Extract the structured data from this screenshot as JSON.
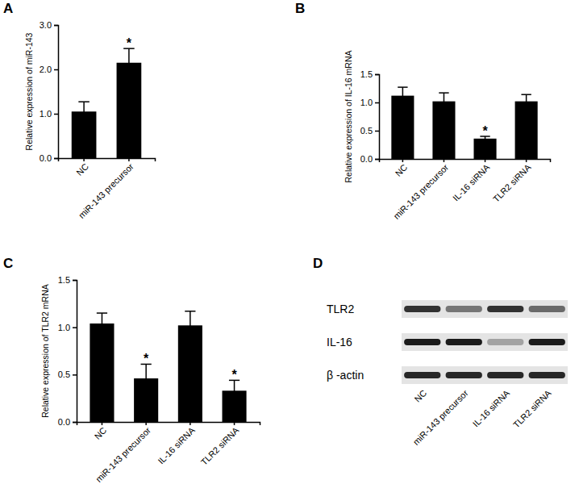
{
  "chart_data": [
    {
      "type": "bar",
      "title": "A",
      "y_label": "Relative expression of miR-143",
      "categories": [
        "NC",
        "miR-143 precursor"
      ],
      "values": [
        1.05,
        2.15
      ],
      "errors": [
        0.22,
        0.32
      ],
      "color": "#000000",
      "ylim": [
        0,
        3
      ],
      "yticks": [
        {
          "value": 0,
          "label": "0.0"
        },
        {
          "value": 1,
          "label": "1.0"
        },
        {
          "value": 2,
          "label": "2.0"
        },
        {
          "value": 3,
          "label": "3.0"
        }
      ],
      "annotations": [
        {
          "text": "*",
          "category": "miR-143 precursor"
        }
      ]
    },
    {
      "type": "bar",
      "title": "B",
      "y_label": "Relative expression of IL-16 mRNA",
      "categories": [
        "NC",
        "miR-143 precursor",
        "IL-16 siRNA",
        "TLR2 siRNA"
      ],
      "values": [
        1.12,
        1.02,
        0.36,
        1.02
      ],
      "errors": [
        0.15,
        0.15,
        0.04,
        0.12
      ],
      "color": "#000000",
      "ylim": [
        0,
        1.5
      ],
      "yticks": [
        {
          "value": 0,
          "label": "0.0"
        },
        {
          "value": 0.5,
          "label": "0.5"
        },
        {
          "value": 1,
          "label": "1.0"
        },
        {
          "value": 1.5,
          "label": "1.5"
        }
      ],
      "annotations": [
        {
          "text": "*",
          "category": "IL-16 siRNA"
        }
      ]
    },
    {
      "type": "bar",
      "title": "C",
      "y_label": "Relative expression of TLR2 mRNA",
      "categories": [
        "NC",
        "miR-143 precursor",
        "IL-16 siRNA",
        "TLR2 siRNA"
      ],
      "values": [
        1.04,
        0.46,
        1.02,
        0.33
      ],
      "errors": [
        0.11,
        0.15,
        0.15,
        0.11
      ],
      "color": "#000000",
      "ylim": [
        0,
        1.5
      ],
      "yticks": [
        {
          "value": 0,
          "label": "0.0"
        },
        {
          "value": 0.5,
          "label": "0.5"
        },
        {
          "value": 1,
          "label": "1.0"
        },
        {
          "value": 1.5,
          "label": "1.5"
        }
      ],
      "annotations": [
        {
          "text": "*",
          "category": "miR-143 precursor"
        },
        {
          "text": "*",
          "category": "TLR2 siRNA"
        }
      ]
    },
    {
      "type": "blot",
      "title": "D",
      "rows": [
        "TLR2",
        "IL-16",
        "β -actin"
      ],
      "columns": [
        "NC",
        "miR-143 precursor",
        "IL-16 siRNA",
        "TLR2 siRNA"
      ],
      "intensity": [
        [
          0.85,
          0.55,
          0.85,
          0.6
        ],
        [
          0.95,
          0.95,
          0.35,
          0.95
        ],
        [
          0.9,
          0.9,
          0.9,
          0.9
        ]
      ]
    }
  ]
}
